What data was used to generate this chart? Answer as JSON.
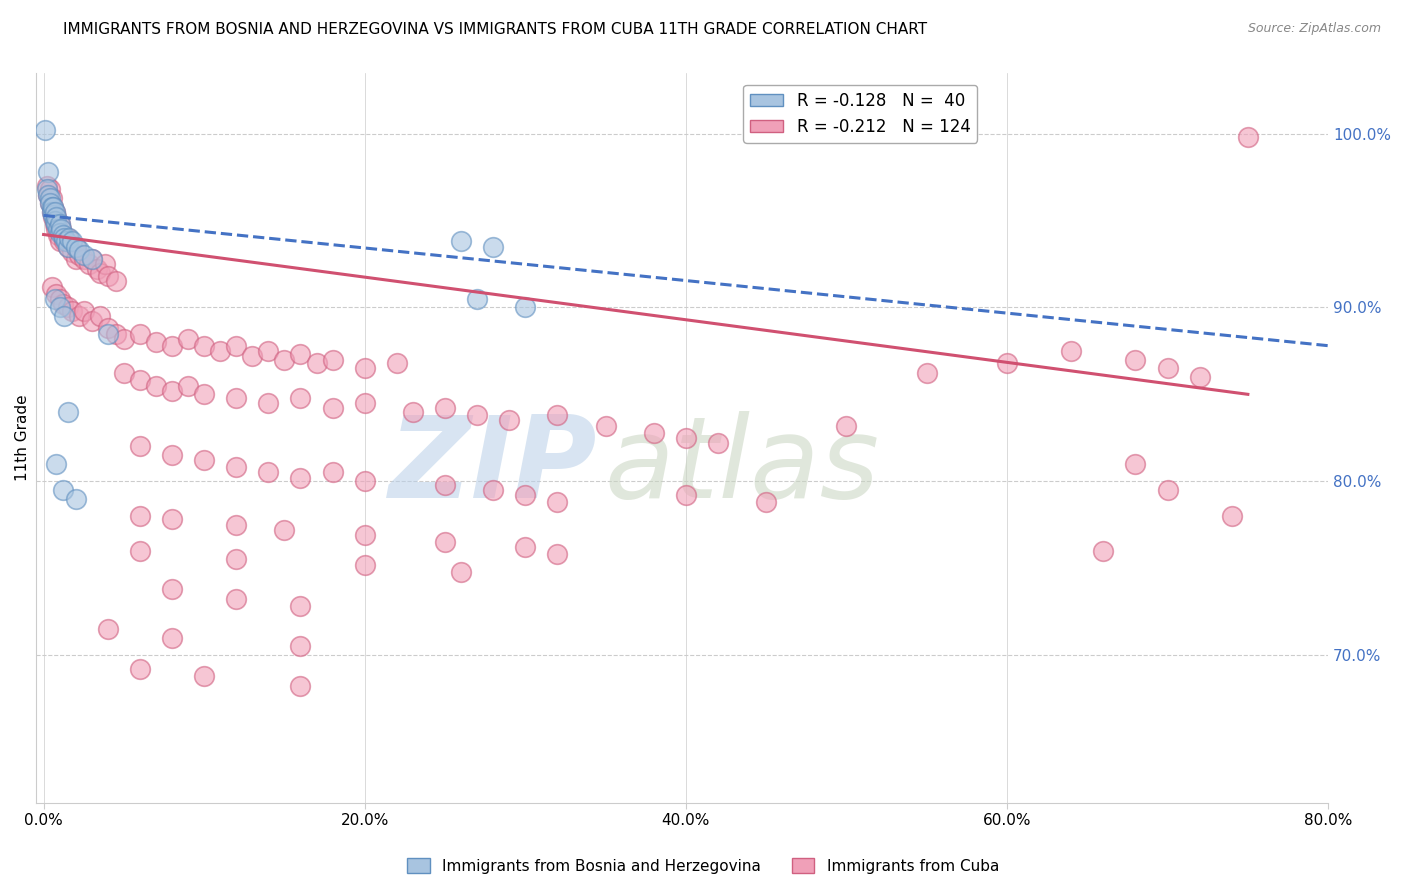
{
  "title": "IMMIGRANTS FROM BOSNIA AND HERZEGOVINA VS IMMIGRANTS FROM CUBA 11TH GRADE CORRELATION CHART",
  "source": "Source: ZipAtlas.com",
  "ylabel": "11th Grade",
  "right_ytick_labels": [
    "70.0%",
    "80.0%",
    "90.0%",
    "100.0%"
  ],
  "right_ytick_values": [
    0.7,
    0.8,
    0.9,
    1.0
  ],
  "xlim": [
    -0.005,
    0.8
  ],
  "ylim": [
    0.615,
    1.035
  ],
  "xticklabels": [
    "0.0%",
    "",
    "",
    "",
    "",
    "20.0%",
    "",
    "",
    "",
    "",
    "40.0%",
    "",
    "",
    "",
    "",
    "60.0%",
    "",
    "",
    "",
    "",
    "80.0%"
  ],
  "xtick_values": [
    0.0,
    0.04,
    0.08,
    0.12,
    0.16,
    0.2,
    0.24,
    0.28,
    0.32,
    0.36,
    0.4,
    0.44,
    0.48,
    0.52,
    0.56,
    0.6,
    0.64,
    0.68,
    0.72,
    0.76,
    0.8
  ],
  "xtick_labels_show": [
    "0.0%",
    "20.0%",
    "40.0%",
    "60.0%",
    "80.0%"
  ],
  "xtick_vals_show": [
    0.0,
    0.2,
    0.4,
    0.6,
    0.8
  ],
  "blue_scatter": [
    [
      0.001,
      1.002
    ],
    [
      0.003,
      0.978
    ],
    [
      0.002,
      0.968
    ],
    [
      0.003,
      0.965
    ],
    [
      0.004,
      0.963
    ],
    [
      0.004,
      0.96
    ],
    [
      0.005,
      0.958
    ],
    [
      0.005,
      0.955
    ],
    [
      0.006,
      0.953
    ],
    [
      0.006,
      0.958
    ],
    [
      0.007,
      0.955
    ],
    [
      0.007,
      0.95
    ],
    [
      0.008,
      0.948
    ],
    [
      0.008,
      0.952
    ],
    [
      0.009,
      0.945
    ],
    [
      0.01,
      0.948
    ],
    [
      0.01,
      0.943
    ],
    [
      0.011,
      0.945
    ],
    [
      0.012,
      0.942
    ],
    [
      0.013,
      0.94
    ],
    [
      0.014,
      0.938
    ],
    [
      0.015,
      0.935
    ],
    [
      0.016,
      0.94
    ],
    [
      0.018,
      0.938
    ],
    [
      0.02,
      0.935
    ],
    [
      0.022,
      0.933
    ],
    [
      0.025,
      0.93
    ],
    [
      0.03,
      0.928
    ],
    [
      0.007,
      0.905
    ],
    [
      0.01,
      0.9
    ],
    [
      0.013,
      0.895
    ],
    [
      0.04,
      0.885
    ],
    [
      0.008,
      0.81
    ],
    [
      0.012,
      0.795
    ],
    [
      0.26,
      0.938
    ],
    [
      0.28,
      0.935
    ],
    [
      0.27,
      0.905
    ],
    [
      0.3,
      0.9
    ],
    [
      0.015,
      0.84
    ],
    [
      0.02,
      0.79
    ]
  ],
  "pink_scatter": [
    [
      0.002,
      0.97
    ],
    [
      0.003,
      0.965
    ],
    [
      0.004,
      0.96
    ],
    [
      0.004,
      0.968
    ],
    [
      0.005,
      0.955
    ],
    [
      0.005,
      0.963
    ],
    [
      0.006,
      0.952
    ],
    [
      0.006,
      0.958
    ],
    [
      0.007,
      0.948
    ],
    [
      0.007,
      0.955
    ],
    [
      0.008,
      0.945
    ],
    [
      0.008,
      0.952
    ],
    [
      0.009,
      0.942
    ],
    [
      0.01,
      0.948
    ],
    [
      0.01,
      0.938
    ],
    [
      0.011,
      0.945
    ],
    [
      0.012,
      0.942
    ],
    [
      0.013,
      0.938
    ],
    [
      0.015,
      0.935
    ],
    [
      0.015,
      0.94
    ],
    [
      0.018,
      0.932
    ],
    [
      0.02,
      0.928
    ],
    [
      0.02,
      0.935
    ],
    [
      0.022,
      0.93
    ],
    [
      0.025,
      0.928
    ],
    [
      0.028,
      0.925
    ],
    [
      0.03,
      0.928
    ],
    [
      0.033,
      0.922
    ],
    [
      0.035,
      0.92
    ],
    [
      0.038,
      0.925
    ],
    [
      0.04,
      0.918
    ],
    [
      0.045,
      0.915
    ],
    [
      0.005,
      0.912
    ],
    [
      0.008,
      0.908
    ],
    [
      0.01,
      0.905
    ],
    [
      0.012,
      0.902
    ],
    [
      0.015,
      0.9
    ],
    [
      0.018,
      0.898
    ],
    [
      0.022,
      0.895
    ],
    [
      0.025,
      0.898
    ],
    [
      0.03,
      0.892
    ],
    [
      0.035,
      0.895
    ],
    [
      0.04,
      0.888
    ],
    [
      0.045,
      0.885
    ],
    [
      0.05,
      0.882
    ],
    [
      0.06,
      0.885
    ],
    [
      0.07,
      0.88
    ],
    [
      0.08,
      0.878
    ],
    [
      0.09,
      0.882
    ],
    [
      0.1,
      0.878
    ],
    [
      0.11,
      0.875
    ],
    [
      0.12,
      0.878
    ],
    [
      0.13,
      0.872
    ],
    [
      0.14,
      0.875
    ],
    [
      0.15,
      0.87
    ],
    [
      0.16,
      0.873
    ],
    [
      0.17,
      0.868
    ],
    [
      0.18,
      0.87
    ],
    [
      0.2,
      0.865
    ],
    [
      0.22,
      0.868
    ],
    [
      0.05,
      0.862
    ],
    [
      0.06,
      0.858
    ],
    [
      0.07,
      0.855
    ],
    [
      0.08,
      0.852
    ],
    [
      0.09,
      0.855
    ],
    [
      0.1,
      0.85
    ],
    [
      0.12,
      0.848
    ],
    [
      0.14,
      0.845
    ],
    [
      0.16,
      0.848
    ],
    [
      0.18,
      0.842
    ],
    [
      0.2,
      0.845
    ],
    [
      0.23,
      0.84
    ],
    [
      0.25,
      0.842
    ],
    [
      0.27,
      0.838
    ],
    [
      0.29,
      0.835
    ],
    [
      0.32,
      0.838
    ],
    [
      0.35,
      0.832
    ],
    [
      0.38,
      0.828
    ],
    [
      0.4,
      0.825
    ],
    [
      0.42,
      0.822
    ],
    [
      0.06,
      0.82
    ],
    [
      0.08,
      0.815
    ],
    [
      0.1,
      0.812
    ],
    [
      0.12,
      0.808
    ],
    [
      0.14,
      0.805
    ],
    [
      0.16,
      0.802
    ],
    [
      0.18,
      0.805
    ],
    [
      0.2,
      0.8
    ],
    [
      0.25,
      0.798
    ],
    [
      0.28,
      0.795
    ],
    [
      0.3,
      0.792
    ],
    [
      0.32,
      0.788
    ],
    [
      0.06,
      0.78
    ],
    [
      0.08,
      0.778
    ],
    [
      0.12,
      0.775
    ],
    [
      0.15,
      0.772
    ],
    [
      0.2,
      0.769
    ],
    [
      0.25,
      0.765
    ],
    [
      0.3,
      0.762
    ],
    [
      0.32,
      0.758
    ],
    [
      0.06,
      0.76
    ],
    [
      0.12,
      0.755
    ],
    [
      0.2,
      0.752
    ],
    [
      0.26,
      0.748
    ],
    [
      0.08,
      0.738
    ],
    [
      0.12,
      0.732
    ],
    [
      0.16,
      0.728
    ],
    [
      0.04,
      0.715
    ],
    [
      0.08,
      0.71
    ],
    [
      0.16,
      0.705
    ],
    [
      0.06,
      0.692
    ],
    [
      0.1,
      0.688
    ],
    [
      0.16,
      0.682
    ],
    [
      0.4,
      0.792
    ],
    [
      0.45,
      0.788
    ],
    [
      0.5,
      0.832
    ],
    [
      0.55,
      0.862
    ],
    [
      0.6,
      0.868
    ],
    [
      0.64,
      0.875
    ],
    [
      0.68,
      0.87
    ],
    [
      0.7,
      0.865
    ],
    [
      0.72,
      0.86
    ],
    [
      0.75,
      0.998
    ],
    [
      0.68,
      0.81
    ],
    [
      0.7,
      0.795
    ],
    [
      0.74,
      0.78
    ],
    [
      0.66,
      0.76
    ]
  ],
  "blue_line_x": [
    0.0,
    0.8
  ],
  "blue_line_y": [
    0.953,
    0.878
  ],
  "pink_line_x": [
    0.0,
    0.75
  ],
  "pink_line_y": [
    0.942,
    0.85
  ],
  "watermark_zip": "ZIP",
  "watermark_atlas": "atlas",
  "watermark_color_zip": "#b8cfe8",
  "watermark_color_atlas": "#c8d4c0",
  "background_color": "#ffffff",
  "grid_color": "#cccccc",
  "title_fontsize": 11,
  "axis_label_fontsize": 11,
  "tick_fontsize": 11,
  "right_tick_color": "#4472c4",
  "source_color": "#888888",
  "blue_face": "#a8c4e0",
  "blue_edge": "#6090c0",
  "pink_face": "#f0a0b8",
  "pink_edge": "#d06080",
  "blue_trend_color": "#4472c4",
  "pink_trend_color": "#d05070"
}
